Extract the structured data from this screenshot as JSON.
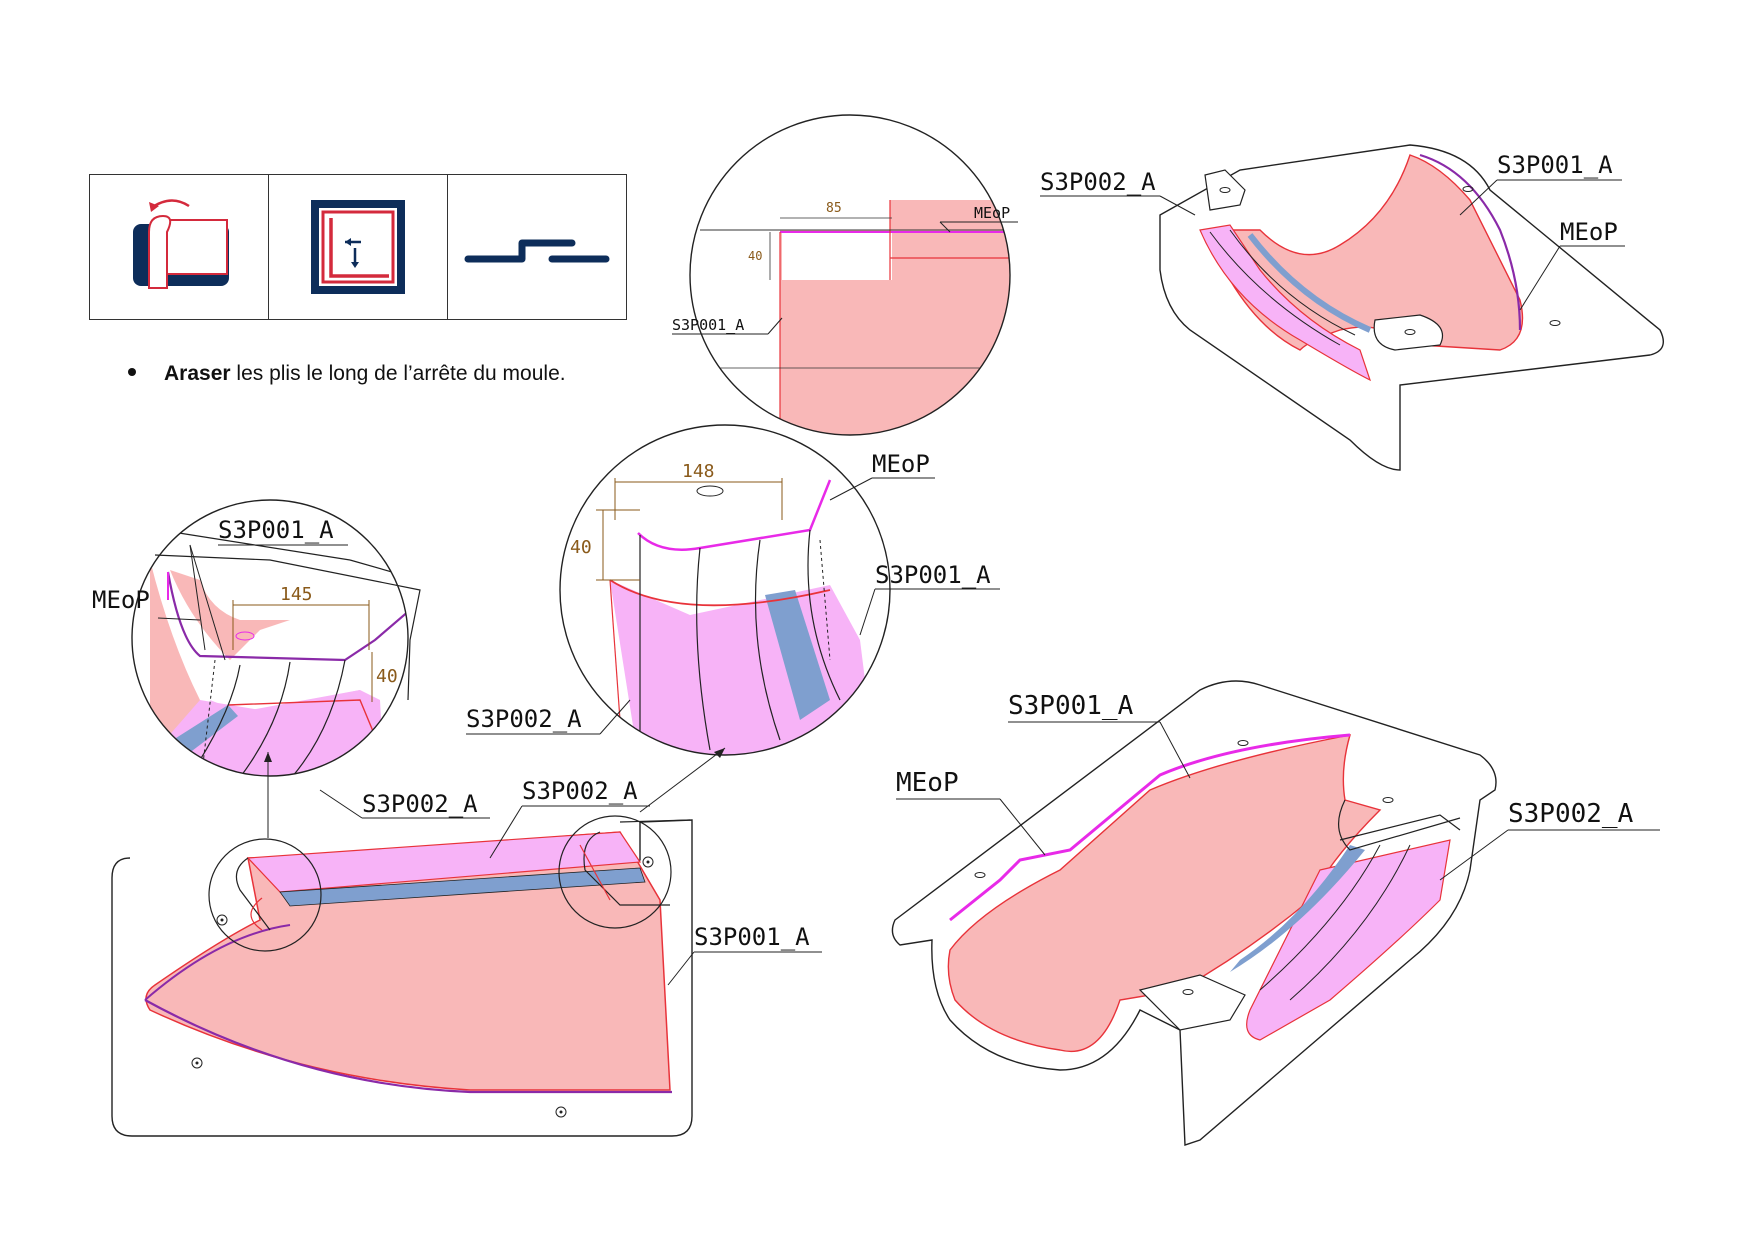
{
  "icons": [
    {
      "name": "drape-ply-icon"
    },
    {
      "name": "trim-boundary-icon"
    },
    {
      "name": "step-offset-icon"
    }
  ],
  "instruction": {
    "bold": "Araser",
    "rest": " les plis le long de l’arrête du moule."
  },
  "labels": {
    "s3p001": "S3P001_A",
    "s3p002": "S3P002_A",
    "meop": "MEoP"
  },
  "dimensions": {
    "d85": "85",
    "d40": "40",
    "d148": "148",
    "d145": "145"
  },
  "colors": {
    "ply_pink": "#f9b8b8",
    "ply_magenta": "#f7b3f7",
    "ply_blue": "#7f9fcf",
    "edge_red": "#e8333a",
    "meop_magenta": "#e82ae8",
    "icon_navy": "#0d2d5a",
    "icon_red": "#d42a3c"
  }
}
